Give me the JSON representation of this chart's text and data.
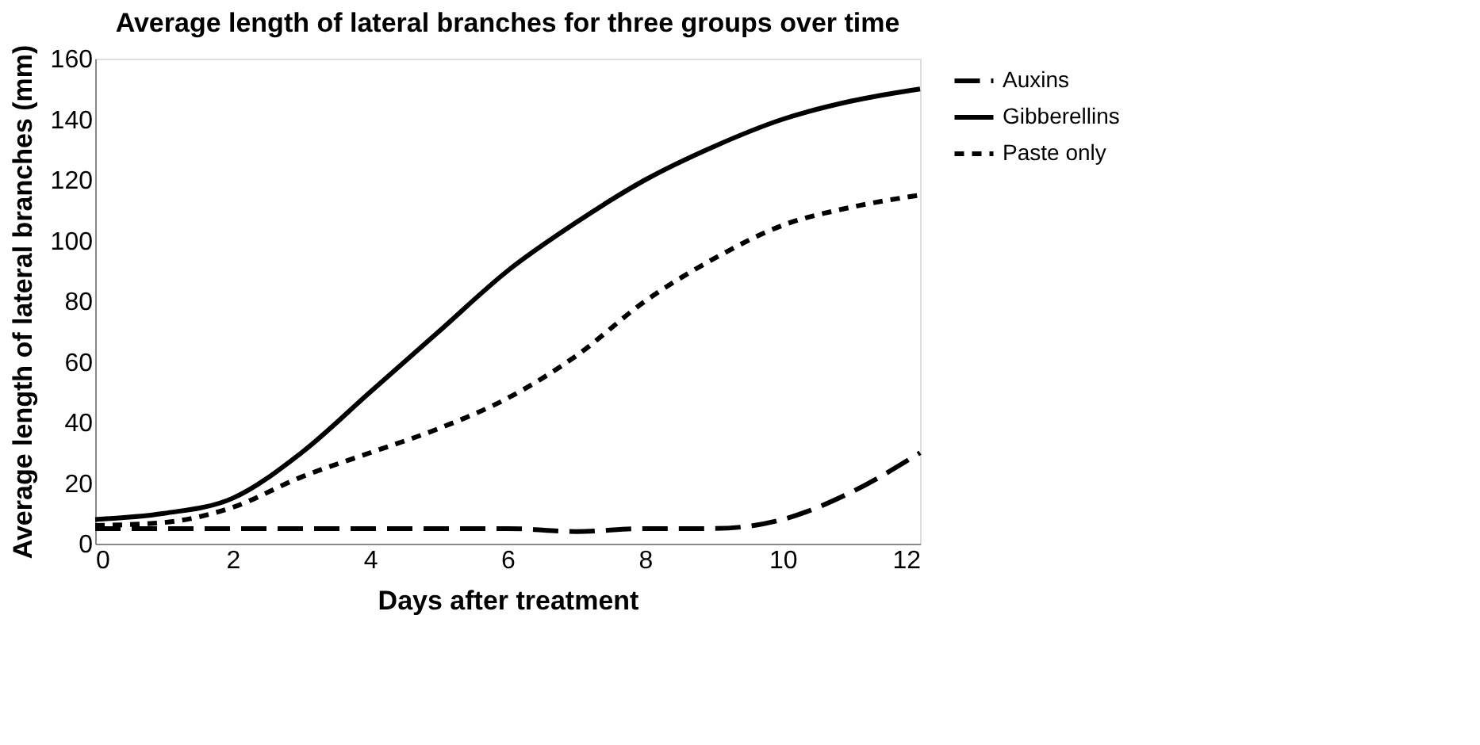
{
  "chart_data": {
    "type": "line",
    "title": "Average length of lateral branches for three groups over time",
    "xlabel": "Days after treatment",
    "ylabel": "Average length of lateral branches (mm)",
    "x": [
      0,
      1,
      2,
      3,
      4,
      5,
      6,
      7,
      8,
      9,
      10,
      11,
      12
    ],
    "series": [
      {
        "name": "Auxins",
        "color": "#000000",
        "line_style": "dashed",
        "values": [
          5,
          5,
          5,
          5,
          5,
          5,
          5,
          4,
          5,
          5,
          8,
          17,
          30
        ]
      },
      {
        "name": "Gibberellins",
        "color": "#000000",
        "line_style": "solid",
        "values": [
          8,
          10,
          15,
          30,
          50,
          70,
          90,
          106,
          120,
          131,
          140,
          146,
          150
        ]
      },
      {
        "name": "Paste only",
        "color": "#000000",
        "line_style": "dotted",
        "values": [
          6,
          7,
          12,
          22,
          30,
          38,
          48,
          62,
          80,
          94,
          105,
          111,
          115
        ]
      }
    ],
    "xlim": [
      0,
      12
    ],
    "xticks": [
      0,
      2,
      4,
      6,
      8,
      10,
      12
    ],
    "ylim": [
      0,
      160
    ],
    "yticks": [
      0,
      20,
      40,
      60,
      80,
      100,
      120,
      140,
      160
    ],
    "grid": false,
    "legend": "right",
    "marker": "none"
  }
}
